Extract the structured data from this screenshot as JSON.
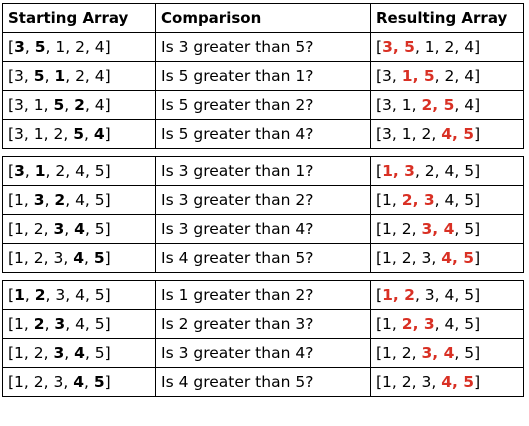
{
  "headers": [
    "Starting Array",
    "Comparison",
    "Resulting Array"
  ],
  "colors": {
    "swap_highlight": "#d93024",
    "text": "#000000",
    "border": "#000000"
  },
  "groups": [
    {
      "rows": [
        {
          "start": [
            {
              "t": "[",
              "s": ""
            },
            {
              "t": "3",
              "s": "b"
            },
            {
              "t": ", ",
              "s": ""
            },
            {
              "t": "5",
              "s": "b"
            },
            {
              "t": ", 1, 2, 4]",
              "s": ""
            }
          ],
          "comparison": "Is 3 greater than 5?",
          "result": [
            {
              "t": "[",
              "s": ""
            },
            {
              "t": "3",
              "s": "r"
            },
            {
              "t": ", ",
              "s": "r"
            },
            {
              "t": "5",
              "s": "r"
            },
            {
              "t": ", 1, 2, 4]",
              "s": ""
            }
          ]
        },
        {
          "start": [
            {
              "t": "[3, ",
              "s": ""
            },
            {
              "t": "5",
              "s": "b"
            },
            {
              "t": ", ",
              "s": ""
            },
            {
              "t": "1",
              "s": "b"
            },
            {
              "t": ", 2, 4]",
              "s": ""
            }
          ],
          "comparison": "Is 5 greater than 1?",
          "result": [
            {
              "t": "[3, ",
              "s": ""
            },
            {
              "t": "1",
              "s": "r"
            },
            {
              "t": ", ",
              "s": "r"
            },
            {
              "t": "5",
              "s": "r"
            },
            {
              "t": ", 2, 4]",
              "s": ""
            }
          ]
        },
        {
          "start": [
            {
              "t": "[3, 1, ",
              "s": ""
            },
            {
              "t": "5",
              "s": "b"
            },
            {
              "t": ", ",
              "s": ""
            },
            {
              "t": "2",
              "s": "b"
            },
            {
              "t": ", 4]",
              "s": ""
            }
          ],
          "comparison": "Is 5 greater than 2?",
          "result": [
            {
              "t": "[3, 1, ",
              "s": ""
            },
            {
              "t": "2",
              "s": "r"
            },
            {
              "t": ", ",
              "s": "r"
            },
            {
              "t": "5",
              "s": "r"
            },
            {
              "t": ", 4]",
              "s": ""
            }
          ]
        },
        {
          "start": [
            {
              "t": "[3, 1, 2, ",
              "s": ""
            },
            {
              "t": "5",
              "s": "b"
            },
            {
              "t": ", ",
              "s": ""
            },
            {
              "t": "4",
              "s": "b"
            },
            {
              "t": "]",
              "s": ""
            }
          ],
          "comparison": "Is 5 greater than 4?",
          "result": [
            {
              "t": "[3, 1, 2, ",
              "s": ""
            },
            {
              "t": "4",
              "s": "r"
            },
            {
              "t": ", ",
              "s": "r"
            },
            {
              "t": "5",
              "s": "r"
            },
            {
              "t": "]",
              "s": ""
            }
          ]
        }
      ]
    },
    {
      "rows": [
        {
          "start": [
            {
              "t": "[",
              "s": ""
            },
            {
              "t": "3",
              "s": "b"
            },
            {
              "t": ", ",
              "s": ""
            },
            {
              "t": "1",
              "s": "b"
            },
            {
              "t": ", 2, 4, 5]",
              "s": ""
            }
          ],
          "comparison": "Is 3 greater than 1?",
          "result": [
            {
              "t": "[",
              "s": ""
            },
            {
              "t": "1",
              "s": "r"
            },
            {
              "t": ", ",
              "s": "r"
            },
            {
              "t": "3",
              "s": "r"
            },
            {
              "t": ", 2, 4, 5]",
              "s": ""
            }
          ]
        },
        {
          "start": [
            {
              "t": "[1, ",
              "s": ""
            },
            {
              "t": "3",
              "s": "b"
            },
            {
              "t": ", ",
              "s": ""
            },
            {
              "t": "2",
              "s": "b"
            },
            {
              "t": ", 4, 5]",
              "s": ""
            }
          ],
          "comparison": "Is 3 greater than 2?",
          "result": [
            {
              "t": "[1, ",
              "s": ""
            },
            {
              "t": "2",
              "s": "r"
            },
            {
              "t": ", ",
              "s": "r"
            },
            {
              "t": "3",
              "s": "r"
            },
            {
              "t": ", 4, 5]",
              "s": ""
            }
          ]
        },
        {
          "start": [
            {
              "t": "[1, 2, ",
              "s": ""
            },
            {
              "t": "3",
              "s": "b"
            },
            {
              "t": ", ",
              "s": ""
            },
            {
              "t": "4",
              "s": "b"
            },
            {
              "t": ", 5]",
              "s": ""
            }
          ],
          "comparison": "Is 3 greater than 4?",
          "result": [
            {
              "t": "[1, 2, ",
              "s": ""
            },
            {
              "t": "3",
              "s": "r"
            },
            {
              "t": ", ",
              "s": "r"
            },
            {
              "t": "4",
              "s": "r"
            },
            {
              "t": ", 5]",
              "s": ""
            }
          ]
        },
        {
          "start": [
            {
              "t": "[1, 2, 3, ",
              "s": ""
            },
            {
              "t": "4",
              "s": "b"
            },
            {
              "t": ", ",
              "s": ""
            },
            {
              "t": "5",
              "s": "b"
            },
            {
              "t": "]",
              "s": ""
            }
          ],
          "comparison": "Is 4 greater than 5?",
          "result": [
            {
              "t": "[1, 2, 3, ",
              "s": ""
            },
            {
              "t": "4",
              "s": "r"
            },
            {
              "t": ", ",
              "s": "r"
            },
            {
              "t": "5",
              "s": "r"
            },
            {
              "t": "]",
              "s": ""
            }
          ]
        }
      ]
    },
    {
      "rows": [
        {
          "start": [
            {
              "t": "[",
              "s": ""
            },
            {
              "t": "1",
              "s": "b"
            },
            {
              "t": ", ",
              "s": ""
            },
            {
              "t": "2",
              "s": "b"
            },
            {
              "t": ", 3, 4, 5]",
              "s": ""
            }
          ],
          "comparison": "Is 1 greater than 2?",
          "result": [
            {
              "t": "[",
              "s": ""
            },
            {
              "t": "1",
              "s": "r"
            },
            {
              "t": ", ",
              "s": "r"
            },
            {
              "t": "2",
              "s": "r"
            },
            {
              "t": ", 3, 4, 5]",
              "s": ""
            }
          ]
        },
        {
          "start": [
            {
              "t": "[1, ",
              "s": ""
            },
            {
              "t": "2",
              "s": "b"
            },
            {
              "t": ", ",
              "s": ""
            },
            {
              "t": "3",
              "s": "b"
            },
            {
              "t": ", 4, 5]",
              "s": ""
            }
          ],
          "comparison": "Is 2 greater than 3?",
          "result": [
            {
              "t": "[1, ",
              "s": ""
            },
            {
              "t": "2",
              "s": "r"
            },
            {
              "t": ", ",
              "s": "r"
            },
            {
              "t": "3",
              "s": "r"
            },
            {
              "t": ", 4, 5]",
              "s": ""
            }
          ]
        },
        {
          "start": [
            {
              "t": "[1, 2, ",
              "s": ""
            },
            {
              "t": "3",
              "s": "b"
            },
            {
              "t": ", ",
              "s": ""
            },
            {
              "t": "4",
              "s": "b"
            },
            {
              "t": ", 5]",
              "s": ""
            }
          ],
          "comparison": "Is 3 greater than 4?",
          "result": [
            {
              "t": "[1, 2, ",
              "s": ""
            },
            {
              "t": "3",
              "s": "r"
            },
            {
              "t": ", ",
              "s": "r"
            },
            {
              "t": "4",
              "s": "r"
            },
            {
              "t": ", 5]",
              "s": ""
            }
          ]
        },
        {
          "start": [
            {
              "t": "[1, 2, 3, ",
              "s": ""
            },
            {
              "t": "4",
              "s": "b"
            },
            {
              "t": ", ",
              "s": ""
            },
            {
              "t": "5",
              "s": "b"
            },
            {
              "t": "]",
              "s": ""
            }
          ],
          "comparison": "Is 4 greater than 5?",
          "result": [
            {
              "t": "[1, 2, 3, ",
              "s": ""
            },
            {
              "t": "4",
              "s": "r"
            },
            {
              "t": ", ",
              "s": "r"
            },
            {
              "t": "5",
              "s": "r"
            },
            {
              "t": "]",
              "s": ""
            }
          ]
        }
      ]
    }
  ]
}
